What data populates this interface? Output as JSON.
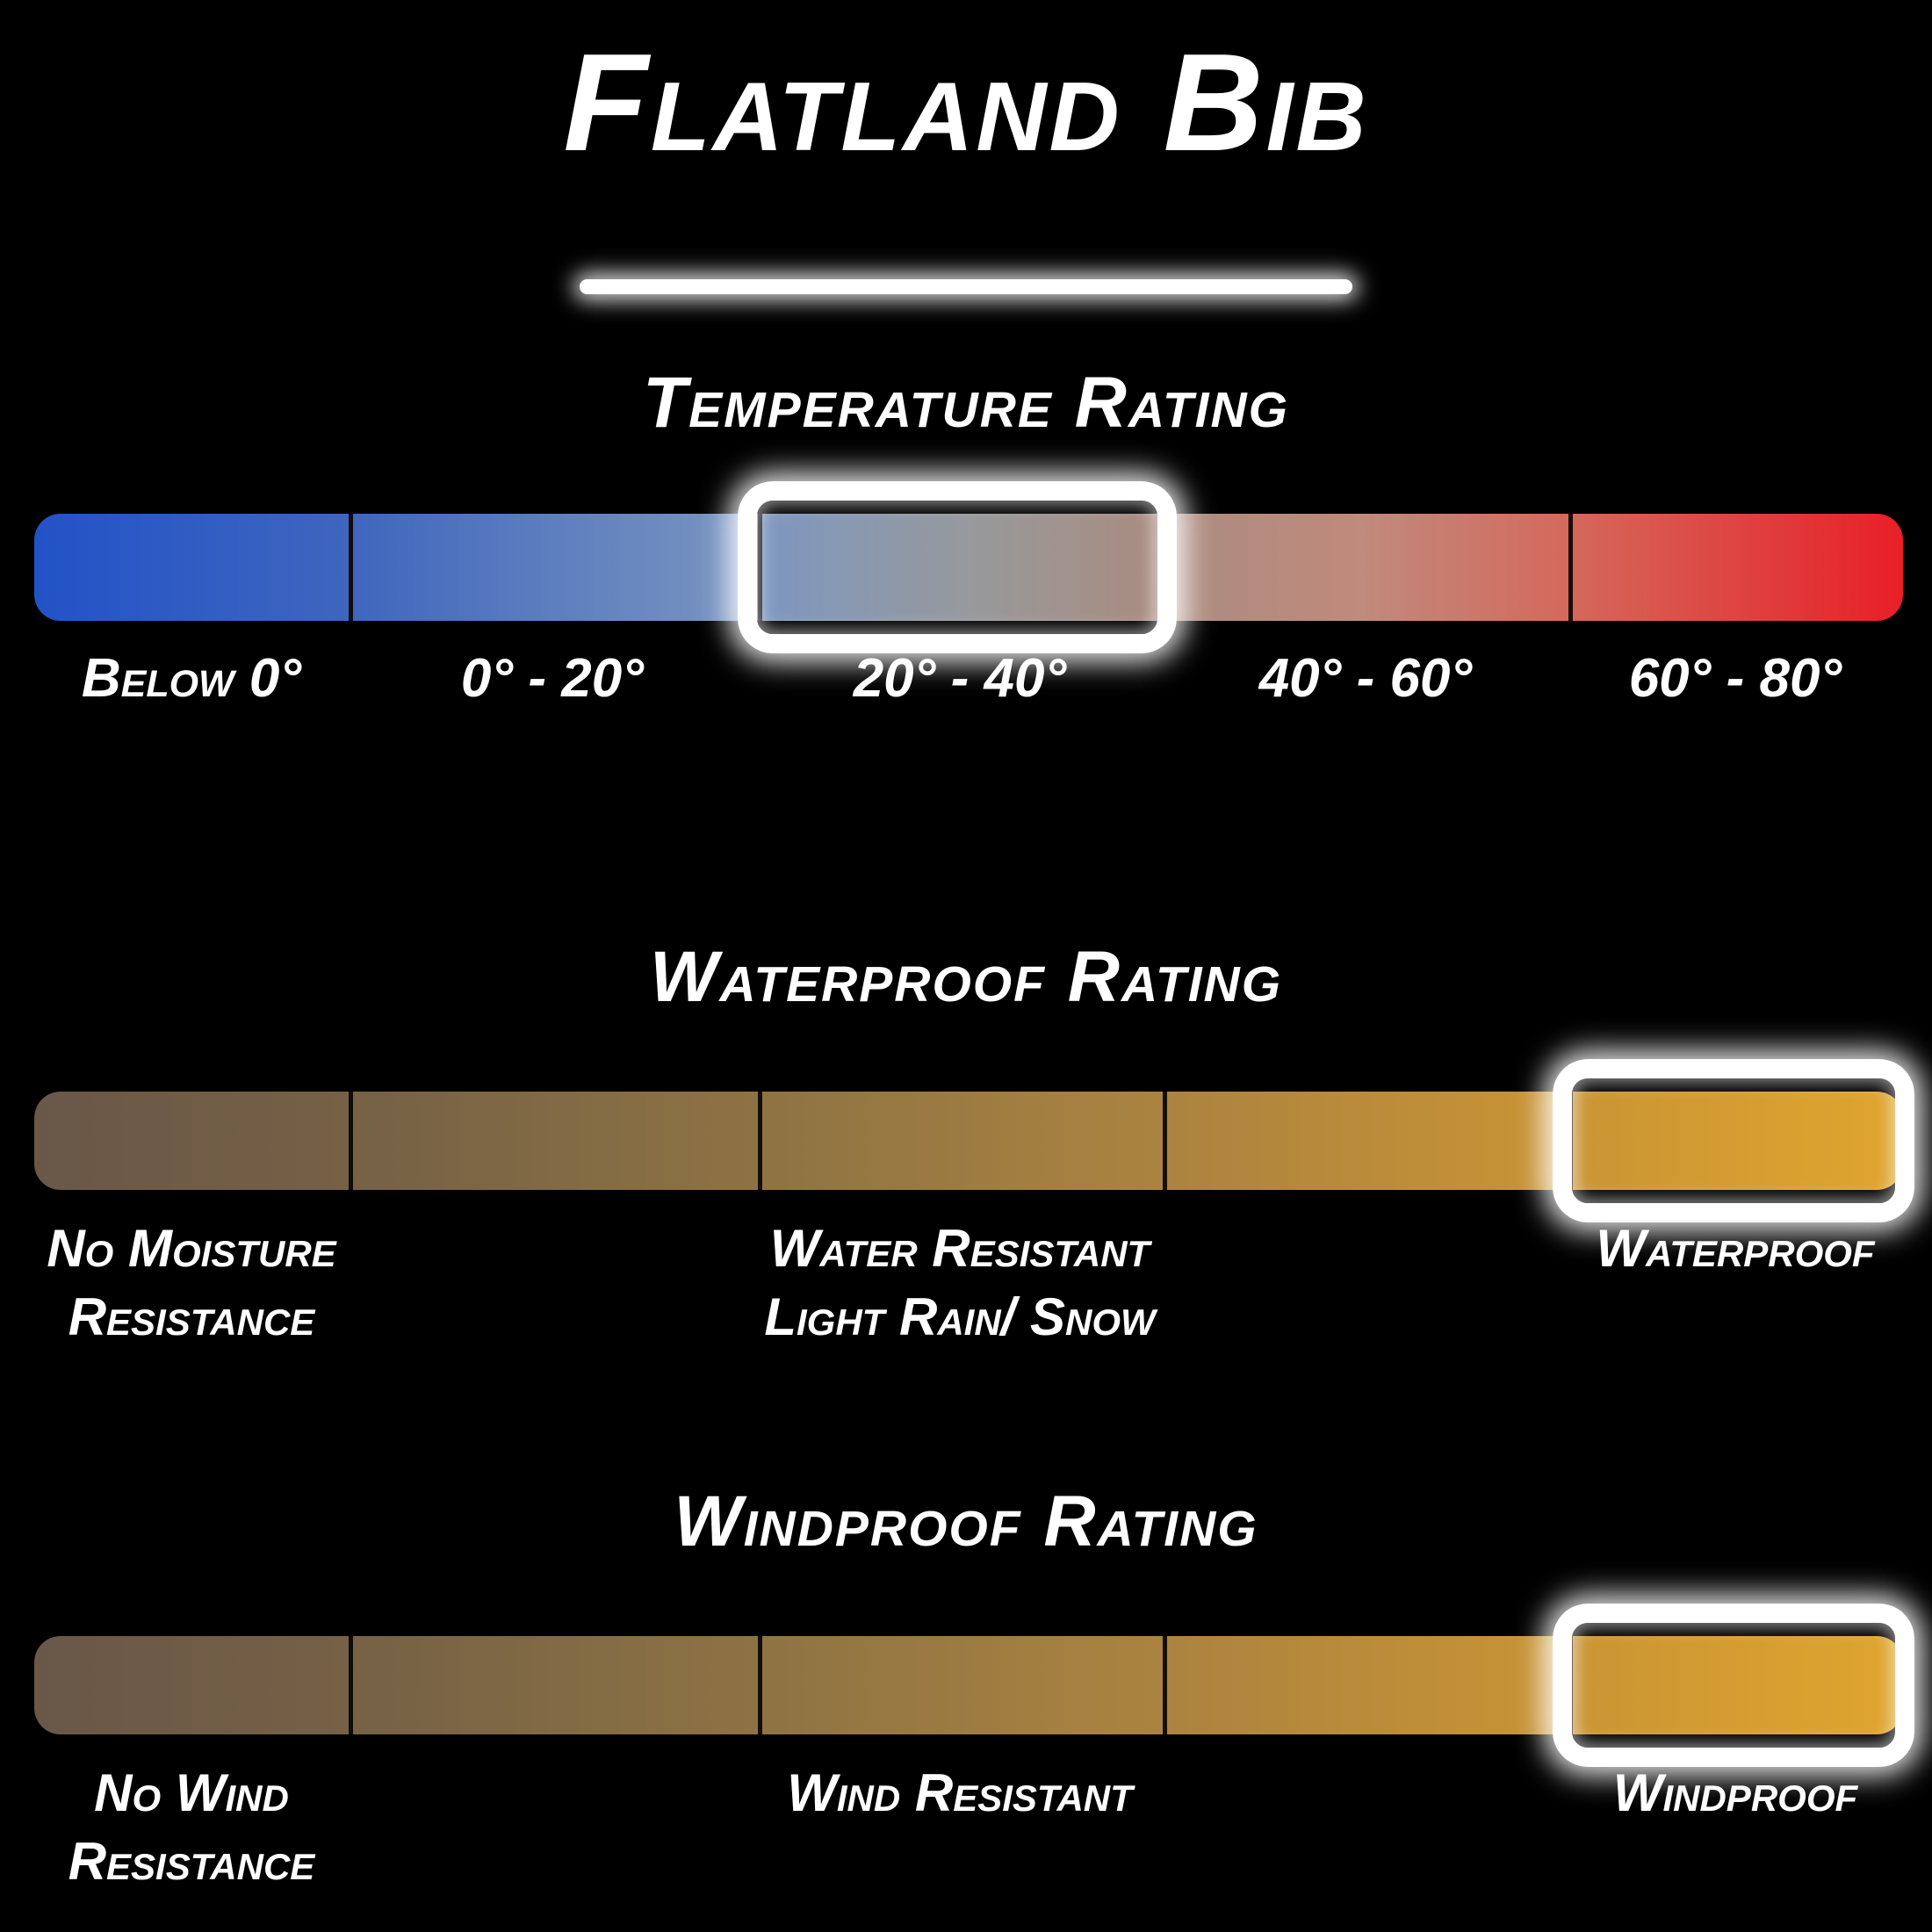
{
  "title": "Flatland Bib",
  "colors": {
    "background": "#000000",
    "text": "#ffffff",
    "highlight_border": "#ffffff",
    "temp_gradient_start": "#2252c7",
    "temp_gradient_mid": "#97999c",
    "temp_gradient_end": "#e81f27",
    "proof_gradient_start": "#695748",
    "proof_gradient_end": "#e0a52f"
  },
  "temperature": {
    "heading": "Temperature Rating",
    "labels": [
      "Below 0°",
      "0° - 20°",
      "20° - 40°",
      "40° - 60°",
      "60° - 80°"
    ],
    "selected": "20° - 40°"
  },
  "waterproof": {
    "heading": "Waterproof Rating",
    "labels": [
      {
        "line1": "No Moisture",
        "line2": "Resistance"
      },
      {
        "line1": "Water Resistant",
        "line2": "Light Rain/ Snow"
      },
      {
        "line1": "Waterproof",
        "line2": ""
      }
    ],
    "selected": "Waterproof"
  },
  "windproof": {
    "heading": "Windproof Rating",
    "labels": [
      {
        "line1": "No Wind",
        "line2": "Resistance"
      },
      {
        "line1": "Wind Resistant",
        "line2": ""
      },
      {
        "line1": "Windproof",
        "line2": ""
      }
    ],
    "selected": "Windproof"
  },
  "chart_data": [
    {
      "type": "scale",
      "title": "Temperature Rating",
      "categories": [
        "Below 0°",
        "0° - 20°",
        "20° - 40°",
        "40° - 60°",
        "60° - 80°"
      ],
      "segments": 5,
      "selected": "20° - 40°",
      "selected_index": 2,
      "gradient": [
        "#2252c7",
        "#97999c",
        "#e81f27"
      ]
    },
    {
      "type": "scale",
      "title": "Waterproof Rating",
      "categories": [
        "No Moisture Resistance",
        "Water Resistant Light Rain/ Snow",
        "Waterproof"
      ],
      "segments": 5,
      "selected": "Waterproof",
      "selected_index": 4,
      "gradient": [
        "#695748",
        "#e0a52f"
      ]
    },
    {
      "type": "scale",
      "title": "Windproof Rating",
      "categories": [
        "No Wind Resistance",
        "Wind Resistant",
        "Windproof"
      ],
      "segments": 5,
      "selected": "Windproof",
      "selected_index": 4,
      "gradient": [
        "#695748",
        "#e0a52f"
      ]
    }
  ]
}
